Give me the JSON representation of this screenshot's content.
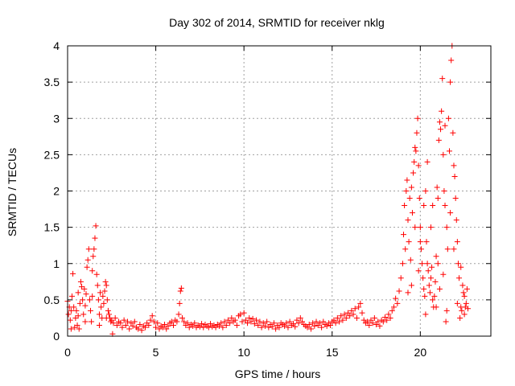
{
  "chart_data": {
    "type": "scatter",
    "title": "Day 302 of 2014, SRMTID for receiver nklg",
    "xlabel": "GPS time / hours",
    "ylabel": "SRMTID / TECUs",
    "xlim": [
      0,
      24
    ],
    "ylim": [
      0,
      4
    ],
    "xticks": [
      0,
      5,
      10,
      15,
      20
    ],
    "xtick_labels": [
      "0",
      "5",
      "10",
      "15",
      "20"
    ],
    "yticks": [
      0,
      0.5,
      1,
      1.5,
      2,
      2.5,
      3,
      3.5,
      4
    ],
    "ytick_labels": [
      "0",
      "0.5",
      "1",
      "1.5",
      "2",
      "2.5",
      "3",
      "3.5",
      "4"
    ],
    "grid": true,
    "marker": "+",
    "color": "#ff0000",
    "series": [
      {
        "name": "SRMTID",
        "points": [
          [
            0.0,
            0.48
          ],
          [
            0.05,
            0.3
          ],
          [
            0.1,
            0.4
          ],
          [
            0.15,
            0.22
          ],
          [
            0.2,
            0.35
          ],
          [
            0.25,
            0.55
          ],
          [
            0.3,
            0.86
          ],
          [
            0.35,
            0.4
          ],
          [
            0.4,
            0.12
          ],
          [
            0.45,
            0.25
          ],
          [
            0.5,
            0.35
          ],
          [
            0.55,
            0.15
          ],
          [
            0.6,
            0.28
          ],
          [
            0.65,
            0.1
          ],
          [
            0.7,
            0.45
          ],
          [
            0.75,
            0.75
          ],
          [
            0.8,
            0.68
          ],
          [
            0.85,
            0.5
          ],
          [
            0.9,
            0.3
          ],
          [
            0.95,
            0.65
          ],
          [
            1.0,
            0.42
          ],
          [
            1.05,
            0.58
          ],
          [
            1.1,
            0.95
          ],
          [
            1.15,
            1.05
          ],
          [
            1.2,
            1.2
          ],
          [
            1.25,
            0.5
          ],
          [
            1.3,
            0.35
          ],
          [
            1.35,
            0.2
          ],
          [
            1.4,
            0.55
          ],
          [
            1.45,
            1.1
          ],
          [
            1.5,
            1.2
          ],
          [
            1.55,
            1.35
          ],
          [
            1.6,
            1.52
          ],
          [
            1.65,
            0.85
          ],
          [
            1.7,
            0.7
          ],
          [
            1.75,
            0.5
          ],
          [
            1.8,
            0.3
          ],
          [
            1.85,
            0.6
          ],
          [
            1.9,
            0.4
          ],
          [
            1.95,
            0.25
          ],
          [
            2.0,
            0.55
          ],
          [
            2.05,
            0.45
          ],
          [
            2.1,
            0.62
          ],
          [
            2.15,
            0.75
          ],
          [
            2.2,
            0.7
          ],
          [
            2.25,
            0.5
          ],
          [
            2.3,
            0.35
          ],
          [
            2.35,
            0.3
          ],
          [
            2.4,
            0.25
          ],
          [
            2.45,
            0.2
          ],
          [
            2.5,
            0.22
          ],
          [
            2.55,
            0.03
          ],
          [
            2.6,
            0.18
          ],
          [
            2.7,
            0.25
          ],
          [
            2.8,
            0.15
          ],
          [
            2.9,
            0.2
          ],
          [
            3.0,
            0.18
          ],
          [
            3.1,
            0.12
          ],
          [
            3.2,
            0.22
          ],
          [
            3.3,
            0.15
          ],
          [
            3.4,
            0.2
          ],
          [
            3.5,
            0.1
          ],
          [
            3.6,
            0.18
          ],
          [
            3.7,
            0.14
          ],
          [
            3.8,
            0.2
          ],
          [
            3.9,
            0.12
          ],
          [
            4.0,
            0.1
          ],
          [
            4.1,
            0.16
          ],
          [
            4.2,
            0.08
          ],
          [
            4.3,
            0.14
          ],
          [
            4.4,
            0.12
          ],
          [
            4.5,
            0.18
          ],
          [
            4.6,
            0.15
          ],
          [
            4.7,
            0.22
          ],
          [
            4.8,
            0.28
          ],
          [
            4.9,
            0.2
          ],
          [
            5.0,
            0.12
          ],
          [
            5.1,
            0.18
          ],
          [
            5.2,
            0.1
          ],
          [
            5.3,
            0.14
          ],
          [
            5.4,
            0.12
          ],
          [
            5.5,
            0.16
          ],
          [
            5.6,
            0.1
          ],
          [
            5.7,
            0.14
          ],
          [
            5.8,
            0.18
          ],
          [
            5.9,
            0.2
          ],
          [
            6.0,
            0.15
          ],
          [
            6.1,
            0.22
          ],
          [
            6.2,
            0.2
          ],
          [
            6.3,
            0.3
          ],
          [
            6.35,
            0.45
          ],
          [
            6.4,
            0.62
          ],
          [
            6.45,
            0.66
          ],
          [
            6.5,
            0.25
          ],
          [
            6.6,
            0.2
          ],
          [
            6.7,
            0.15
          ],
          [
            6.8,
            0.18
          ],
          [
            6.9,
            0.12
          ],
          [
            7.0,
            0.16
          ],
          [
            7.1,
            0.14
          ],
          [
            7.2,
            0.18
          ],
          [
            7.3,
            0.12
          ],
          [
            7.4,
            0.15
          ],
          [
            7.5,
            0.13
          ],
          [
            7.6,
            0.17
          ],
          [
            7.7,
            0.12
          ],
          [
            7.8,
            0.16
          ],
          [
            7.9,
            0.14
          ],
          [
            8.0,
            0.12
          ],
          [
            8.1,
            0.17
          ],
          [
            8.2,
            0.13
          ],
          [
            8.3,
            0.15
          ],
          [
            8.4,
            0.12
          ],
          [
            8.5,
            0.16
          ],
          [
            8.6,
            0.14
          ],
          [
            8.7,
            0.18
          ],
          [
            8.8,
            0.12
          ],
          [
            8.9,
            0.2
          ],
          [
            9.0,
            0.15
          ],
          [
            9.1,
            0.22
          ],
          [
            9.2,
            0.18
          ],
          [
            9.3,
            0.25
          ],
          [
            9.4,
            0.2
          ],
          [
            9.5,
            0.22
          ],
          [
            9.6,
            0.15
          ],
          [
            9.7,
            0.28
          ],
          [
            9.8,
            0.3
          ],
          [
            9.9,
            0.2
          ],
          [
            10.0,
            0.32
          ],
          [
            10.1,
            0.22
          ],
          [
            10.2,
            0.18
          ],
          [
            10.3,
            0.25
          ],
          [
            10.4,
            0.2
          ],
          [
            10.5,
            0.24
          ],
          [
            10.6,
            0.17
          ],
          [
            10.7,
            0.22
          ],
          [
            10.8,
            0.15
          ],
          [
            10.9,
            0.2
          ],
          [
            11.0,
            0.12
          ],
          [
            11.1,
            0.18
          ],
          [
            11.2,
            0.14
          ],
          [
            11.3,
            0.2
          ],
          [
            11.4,
            0.12
          ],
          [
            11.5,
            0.16
          ],
          [
            11.6,
            0.13
          ],
          [
            11.7,
            0.18
          ],
          [
            11.8,
            0.1
          ],
          [
            11.9,
            0.15
          ],
          [
            12.0,
            0.12
          ],
          [
            12.1,
            0.18
          ],
          [
            12.2,
            0.16
          ],
          [
            12.3,
            0.14
          ],
          [
            12.4,
            0.18
          ],
          [
            12.5,
            0.12
          ],
          [
            12.6,
            0.2
          ],
          [
            12.7,
            0.15
          ],
          [
            12.8,
            0.17
          ],
          [
            12.9,
            0.13
          ],
          [
            13.0,
            0.22
          ],
          [
            13.1,
            0.18
          ],
          [
            13.2,
            0.25
          ],
          [
            13.3,
            0.2
          ],
          [
            13.4,
            0.16
          ],
          [
            13.5,
            0.14
          ],
          [
            13.6,
            0.12
          ],
          [
            13.7,
            0.16
          ],
          [
            13.8,
            0.1
          ],
          [
            13.9,
            0.18
          ],
          [
            14.0,
            0.14
          ],
          [
            14.1,
            0.2
          ],
          [
            14.2,
            0.15
          ],
          [
            14.3,
            0.18
          ],
          [
            14.4,
            0.12
          ],
          [
            14.5,
            0.2
          ],
          [
            14.6,
            0.16
          ],
          [
            14.7,
            0.14
          ],
          [
            14.8,
            0.18
          ],
          [
            14.9,
            0.15
          ],
          [
            15.0,
            0.2
          ],
          [
            15.1,
            0.22
          ],
          [
            15.2,
            0.18
          ],
          [
            15.3,
            0.25
          ],
          [
            15.4,
            0.2
          ],
          [
            15.5,
            0.28
          ],
          [
            15.6,
            0.22
          ],
          [
            15.7,
            0.3
          ],
          [
            15.8,
            0.25
          ],
          [
            15.9,
            0.32
          ],
          [
            16.0,
            0.28
          ],
          [
            16.1,
            0.35
          ],
          [
            16.2,
            0.3
          ],
          [
            16.3,
            0.38
          ],
          [
            16.4,
            0.25
          ],
          [
            16.5,
            0.4
          ],
          [
            16.6,
            0.45
          ],
          [
            16.7,
            0.32
          ],
          [
            16.8,
            0.22
          ],
          [
            16.9,
            0.18
          ],
          [
            17.0,
            0.2
          ],
          [
            17.1,
            0.15
          ],
          [
            17.2,
            0.22
          ],
          [
            17.3,
            0.18
          ],
          [
            17.4,
            0.25
          ],
          [
            17.5,
            0.16
          ],
          [
            17.6,
            0.2
          ],
          [
            17.7,
            0.14
          ],
          [
            17.8,
            0.22
          ],
          [
            17.9,
            0.2
          ],
          [
            18.0,
            0.26
          ],
          [
            18.1,
            0.22
          ],
          [
            18.2,
            0.3
          ],
          [
            18.3,
            0.25
          ],
          [
            18.4,
            0.35
          ],
          [
            18.5,
            0.4
          ],
          [
            18.6,
            0.52
          ],
          [
            18.7,
            0.45
          ],
          [
            18.8,
            0.62
          ],
          [
            18.9,
            0.8
          ],
          [
            19.0,
            1.0
          ],
          [
            19.05,
            1.4
          ],
          [
            19.1,
            1.8
          ],
          [
            19.15,
            1.2
          ],
          [
            19.2,
            2.0
          ],
          [
            19.25,
            2.15
          ],
          [
            19.3,
            1.6
          ],
          [
            19.35,
            1.3
          ],
          [
            19.4,
            1.9
          ],
          [
            19.45,
            1.05
          ],
          [
            19.5,
            2.05
          ],
          [
            19.55,
            1.7
          ],
          [
            19.6,
            2.25
          ],
          [
            19.65,
            2.4
          ],
          [
            19.7,
            2.6
          ],
          [
            19.75,
            2.55
          ],
          [
            19.8,
            2.8
          ],
          [
            19.85,
            3.0
          ],
          [
            19.9,
            2.35
          ],
          [
            19.95,
            1.9
          ],
          [
            20.0,
            1.5
          ],
          [
            20.05,
            1.2
          ],
          [
            20.1,
            1.0
          ],
          [
            20.15,
            0.8
          ],
          [
            20.2,
            0.65
          ],
          [
            20.25,
            0.55
          ],
          [
            20.3,
            0.3
          ],
          [
            20.35,
            1.3
          ],
          [
            20.4,
            1.0
          ],
          [
            20.45,
            0.9
          ],
          [
            20.5,
            0.7
          ],
          [
            20.55,
            0.6
          ],
          [
            20.6,
            0.8
          ],
          [
            20.65,
            0.95
          ],
          [
            20.7,
            0.5
          ],
          [
            20.75,
            0.4
          ],
          [
            20.8,
            0.55
          ],
          [
            20.85,
            0.75
          ],
          [
            20.9,
            1.1
          ],
          [
            20.95,
            2.05
          ],
          [
            21.0,
            1.9
          ],
          [
            21.05,
            2.7
          ],
          [
            21.1,
            2.95
          ],
          [
            21.15,
            2.85
          ],
          [
            21.2,
            3.1
          ],
          [
            21.25,
            3.55
          ],
          [
            21.3,
            2.5
          ],
          [
            21.35,
            2.0
          ],
          [
            21.4,
            1.8
          ],
          [
            21.45,
            0.2
          ],
          [
            21.5,
            1.5
          ],
          [
            21.55,
            1.2
          ],
          [
            21.6,
            3.0
          ],
          [
            21.65,
            2.55
          ],
          [
            21.7,
            3.5
          ],
          [
            21.75,
            3.8
          ],
          [
            21.8,
            4.0
          ],
          [
            21.85,
            2.8
          ],
          [
            21.9,
            2.35
          ],
          [
            21.95,
            2.2
          ],
          [
            22.0,
            1.9
          ],
          [
            22.05,
            1.6
          ],
          [
            22.1,
            1.3
          ],
          [
            22.15,
            1.0
          ],
          [
            22.2,
            0.8
          ],
          [
            22.25,
            0.25
          ],
          [
            22.3,
            0.4
          ],
          [
            22.35,
            0.35
          ],
          [
            22.4,
            0.7
          ],
          [
            22.45,
            0.6
          ],
          [
            22.5,
            0.55
          ],
          [
            22.55,
            0.4
          ],
          [
            22.6,
            0.45
          ],
          [
            22.65,
            0.65
          ],
          [
            22.7,
            0.38
          ],
          [
            0.2,
            0.1
          ],
          [
            0.6,
            0.6
          ],
          [
            1.0,
            0.2
          ],
          [
            1.4,
            0.9
          ],
          [
            1.8,
            0.15
          ],
          [
            2.2,
            0.25
          ],
          [
            19.3,
            0.6
          ],
          [
            19.5,
            0.7
          ],
          [
            19.7,
            1.5
          ],
          [
            19.9,
            0.9
          ],
          [
            20.2,
            1.8
          ],
          [
            20.4,
            2.4
          ],
          [
            20.6,
            1.5
          ],
          [
            20.9,
            0.4
          ],
          [
            21.1,
            0.65
          ],
          [
            21.3,
            0.85
          ],
          [
            21.5,
            0.35
          ],
          [
            21.7,
            1.7
          ],
          [
            21.9,
            1.2
          ],
          [
            22.1,
            0.45
          ],
          [
            22.3,
            0.95
          ],
          [
            22.5,
            0.3
          ],
          [
            20.0,
            1.3
          ],
          [
            20.3,
            2.0
          ],
          [
            20.7,
            1.8
          ],
          [
            21.0,
            1.0
          ],
          [
            21.4,
            2.9
          ]
        ]
      }
    ]
  }
}
